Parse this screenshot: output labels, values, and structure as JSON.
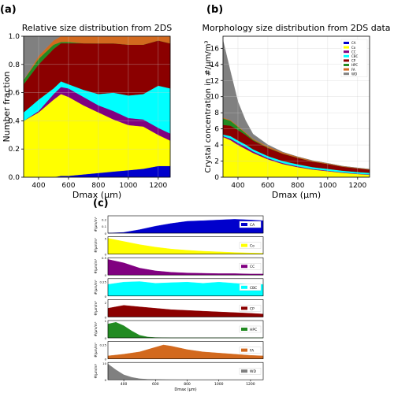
{
  "panel_labels": {
    "a": "(a)",
    "b": "(b)",
    "c": "(c)"
  },
  "colors": {
    "CA": "#0000cc",
    "Co": "#ffff00",
    "CC": "#800080",
    "CBC": "#00ffff",
    "CP": "#8b0000",
    "HPC": "#228b22",
    "FA": "#d2691e",
    "WD": "#808080"
  },
  "chart_data": [
    {
      "id": "a",
      "type": "area",
      "stacked": true,
      "title": "Relative size distribution from 2DS",
      "xlabel": "Dmax (μm)",
      "ylabel": "Number fraction",
      "xlim": [
        300,
        1280
      ],
      "ylim": [
        0,
        1.0
      ],
      "xticks": [
        400,
        600,
        800,
        1000,
        1200
      ],
      "yticks": [
        0.0,
        0.2,
        0.4,
        0.6,
        0.8,
        1.0
      ],
      "grid": true,
      "x": [
        300,
        400,
        500,
        550,
        600,
        700,
        800,
        900,
        1000,
        1100,
        1200,
        1280
      ],
      "series": [
        {
          "name": "CA",
          "values": [
            0.0,
            0.0,
            0.0,
            0.01,
            0.01,
            0.02,
            0.03,
            0.04,
            0.05,
            0.06,
            0.08,
            0.08
          ]
        },
        {
          "name": "Co",
          "values": [
            0.4,
            0.46,
            0.55,
            0.58,
            0.56,
            0.49,
            0.43,
            0.37,
            0.32,
            0.3,
            0.22,
            0.18
          ]
        },
        {
          "name": "CC",
          "values": [
            0.0,
            0.01,
            0.04,
            0.05,
            0.06,
            0.06,
            0.05,
            0.06,
            0.05,
            0.05,
            0.05,
            0.05
          ]
        },
        {
          "name": "CBC",
          "values": [
            0.06,
            0.08,
            0.04,
            0.04,
            0.03,
            0.05,
            0.08,
            0.13,
            0.16,
            0.18,
            0.3,
            0.32
          ]
        },
        {
          "name": "CP",
          "values": [
            0.2,
            0.25,
            0.28,
            0.27,
            0.29,
            0.33,
            0.36,
            0.35,
            0.36,
            0.35,
            0.32,
            0.32
          ]
        },
        {
          "name": "HPC",
          "values": [
            0.03,
            0.04,
            0.03,
            0.01,
            0.01,
            0.0,
            0.0,
            0.0,
            0.0,
            0.0,
            0.0,
            0.0
          ]
        },
        {
          "name": "FA",
          "values": [
            0.0,
            0.02,
            0.03,
            0.04,
            0.04,
            0.05,
            0.05,
            0.05,
            0.06,
            0.06,
            0.03,
            0.05
          ]
        },
        {
          "name": "WD",
          "values": [
            0.31,
            0.14,
            0.03,
            0.0,
            0.0,
            0.0,
            0.0,
            0.0,
            0.0,
            0.0,
            0.0,
            0.0
          ]
        }
      ]
    },
    {
      "id": "b",
      "type": "area",
      "stacked": true,
      "title": "Morphology size distribution from 2DS data",
      "xlabel": "Dmax (μm)",
      "ylabel": "Crystal concentration in #/μm/m³",
      "xlim": [
        300,
        1280
      ],
      "ylim": [
        0,
        17.5
      ],
      "xticks": [
        400,
        600,
        800,
        1000,
        1200
      ],
      "yticks": [
        0,
        2,
        4,
        6,
        8,
        10,
        12,
        14,
        16
      ],
      "grid": true,
      "legend_position": "top-right",
      "legend": [
        "CA",
        "Co",
        "CC",
        "CBC",
        "CP",
        "HPC",
        "FA",
        "WD"
      ],
      "x": [
        300,
        350,
        400,
        450,
        500,
        600,
        700,
        800,
        900,
        1000,
        1100,
        1200,
        1280
      ],
      "series": [
        {
          "name": "CA",
          "values": [
            0.0,
            0.0,
            0.01,
            0.02,
            0.02,
            0.03,
            0.04,
            0.05,
            0.05,
            0.05,
            0.05,
            0.05,
            0.05
          ]
        },
        {
          "name": "Co",
          "values": [
            5.0,
            4.6,
            4.0,
            3.5,
            3.0,
            2.2,
            1.6,
            1.2,
            0.9,
            0.7,
            0.5,
            0.35,
            0.25
          ]
        },
        {
          "name": "CC",
          "values": [
            0.1,
            0.2,
            0.25,
            0.25,
            0.2,
            0.15,
            0.12,
            0.1,
            0.08,
            0.07,
            0.06,
            0.05,
            0.05
          ]
        },
        {
          "name": "CBC",
          "values": [
            0.2,
            0.3,
            0.3,
            0.3,
            0.25,
            0.25,
            0.25,
            0.25,
            0.22,
            0.22,
            0.2,
            0.2,
            0.2
          ]
        },
        {
          "name": "CP",
          "values": [
            1.2,
            1.3,
            1.3,
            1.2,
            1.1,
            1.0,
            0.9,
            0.8,
            0.7,
            0.6,
            0.5,
            0.45,
            0.4
          ]
        },
        {
          "name": "HPC",
          "values": [
            0.8,
            0.6,
            0.4,
            0.2,
            0.1,
            0.05,
            0.02,
            0.01,
            0.0,
            0.0,
            0.0,
            0.0,
            0.0
          ]
        },
        {
          "name": "FA",
          "values": [
            0.1,
            0.1,
            0.1,
            0.1,
            0.1,
            0.15,
            0.15,
            0.12,
            0.1,
            0.08,
            0.06,
            0.05,
            0.05
          ]
        },
        {
          "name": "WD",
          "values": [
            9.6,
            6.0,
            3.0,
            1.5,
            0.6,
            0.2,
            0.05,
            0.0,
            0.0,
            0.0,
            0.0,
            0.0,
            0.0
          ]
        }
      ]
    },
    {
      "id": "c",
      "type": "area",
      "stacked": false,
      "xlabel": "Dmax (μm)",
      "xlim": [
        300,
        1280
      ],
      "xticks": [
        400,
        600,
        800,
        1000,
        1200
      ],
      "ylabel": "#/μm/m³",
      "panels": [
        {
          "name": "CA",
          "ylim": [
            0,
            0.25
          ],
          "yticks": [
            "0",
            "0.1",
            "0.2"
          ],
          "x": [
            300,
            400,
            500,
            600,
            700,
            800,
            900,
            1000,
            1100,
            1200,
            1280
          ],
          "values": [
            0.0,
            0.01,
            0.05,
            0.1,
            0.14,
            0.17,
            0.18,
            0.19,
            0.2,
            0.19,
            0.18
          ]
        },
        {
          "name": "Co",
          "ylim": [
            0,
            5.5
          ],
          "yticks": [
            "0",
            "5"
          ],
          "x": [
            300,
            400,
            500,
            600,
            700,
            800,
            900,
            1000,
            1100,
            1200,
            1280
          ],
          "values": [
            5.0,
            4.0,
            3.0,
            2.2,
            1.6,
            1.2,
            0.9,
            0.7,
            0.5,
            0.35,
            0.25
          ]
        },
        {
          "name": "CC",
          "ylim": [
            0,
            0.5
          ],
          "yticks": [
            "0",
            "0.5"
          ],
          "x": [
            300,
            400,
            500,
            600,
            700,
            800,
            900,
            1000,
            1100,
            1200,
            1280
          ],
          "values": [
            0.45,
            0.35,
            0.2,
            0.12,
            0.08,
            0.06,
            0.05,
            0.04,
            0.04,
            0.03,
            0.03
          ]
        },
        {
          "name": "CBC",
          "ylim": [
            0,
            0.3
          ],
          "yticks": [
            "0",
            "0.25"
          ],
          "x": [
            300,
            400,
            500,
            600,
            700,
            800,
            900,
            1000,
            1100,
            1200,
            1280
          ],
          "values": [
            0.2,
            0.24,
            0.25,
            0.22,
            0.23,
            0.24,
            0.22,
            0.24,
            0.22,
            0.2,
            0.2
          ]
        },
        {
          "name": "CP",
          "ylim": [
            0,
            2.4
          ],
          "yticks": [
            "0",
            "2"
          ],
          "x": [
            300,
            400,
            500,
            600,
            700,
            800,
            900,
            1000,
            1100,
            1200,
            1280
          ],
          "values": [
            1.2,
            1.6,
            1.4,
            1.2,
            1.0,
            0.9,
            0.8,
            0.7,
            0.6,
            0.5,
            0.4
          ]
        },
        {
          "name": "HPC",
          "ylim": [
            0,
            1.0
          ],
          "yticks": [
            "0",
            "1"
          ],
          "x": [
            300,
            350,
            400,
            450,
            500,
            550,
            600,
            700,
            800,
            1000,
            1280
          ],
          "values": [
            0.8,
            0.9,
            0.7,
            0.4,
            0.15,
            0.05,
            0.02,
            0.0,
            0.0,
            0.0,
            0.0
          ]
        },
        {
          "name": "FA",
          "ylim": [
            0,
            0.3
          ],
          "yticks": [
            "0",
            "0.25"
          ],
          "x": [
            300,
            400,
            500,
            600,
            650,
            700,
            800,
            900,
            1000,
            1100,
            1200,
            1280
          ],
          "values": [
            0.05,
            0.08,
            0.12,
            0.2,
            0.24,
            0.22,
            0.16,
            0.12,
            0.1,
            0.08,
            0.06,
            0.05
          ]
        },
        {
          "name": "WD",
          "ylim": [
            0,
            10.5
          ],
          "yticks": [
            "0",
            "10"
          ],
          "x": [
            300,
            350,
            400,
            450,
            500,
            550,
            600,
            700,
            800,
            1000,
            1280
          ],
          "values": [
            9.6,
            6.0,
            3.0,
            1.5,
            0.6,
            0.3,
            0.2,
            0.05,
            0.0,
            0.0,
            0.0
          ]
        }
      ]
    }
  ]
}
